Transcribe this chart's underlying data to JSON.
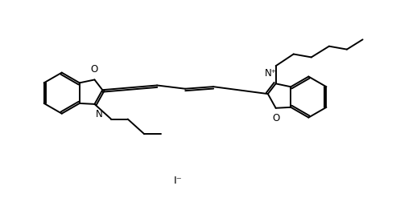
{
  "bg_color": "#ffffff",
  "line_color": "#000000",
  "line_width": 1.4,
  "font_size": 8.5,
  "iodide_label": "I⁻",
  "N_plus_label": "N⁺",
  "N_label": "N",
  "O_label": "O",
  "figsize": [
    4.92,
    2.47
  ],
  "dpi": 100
}
